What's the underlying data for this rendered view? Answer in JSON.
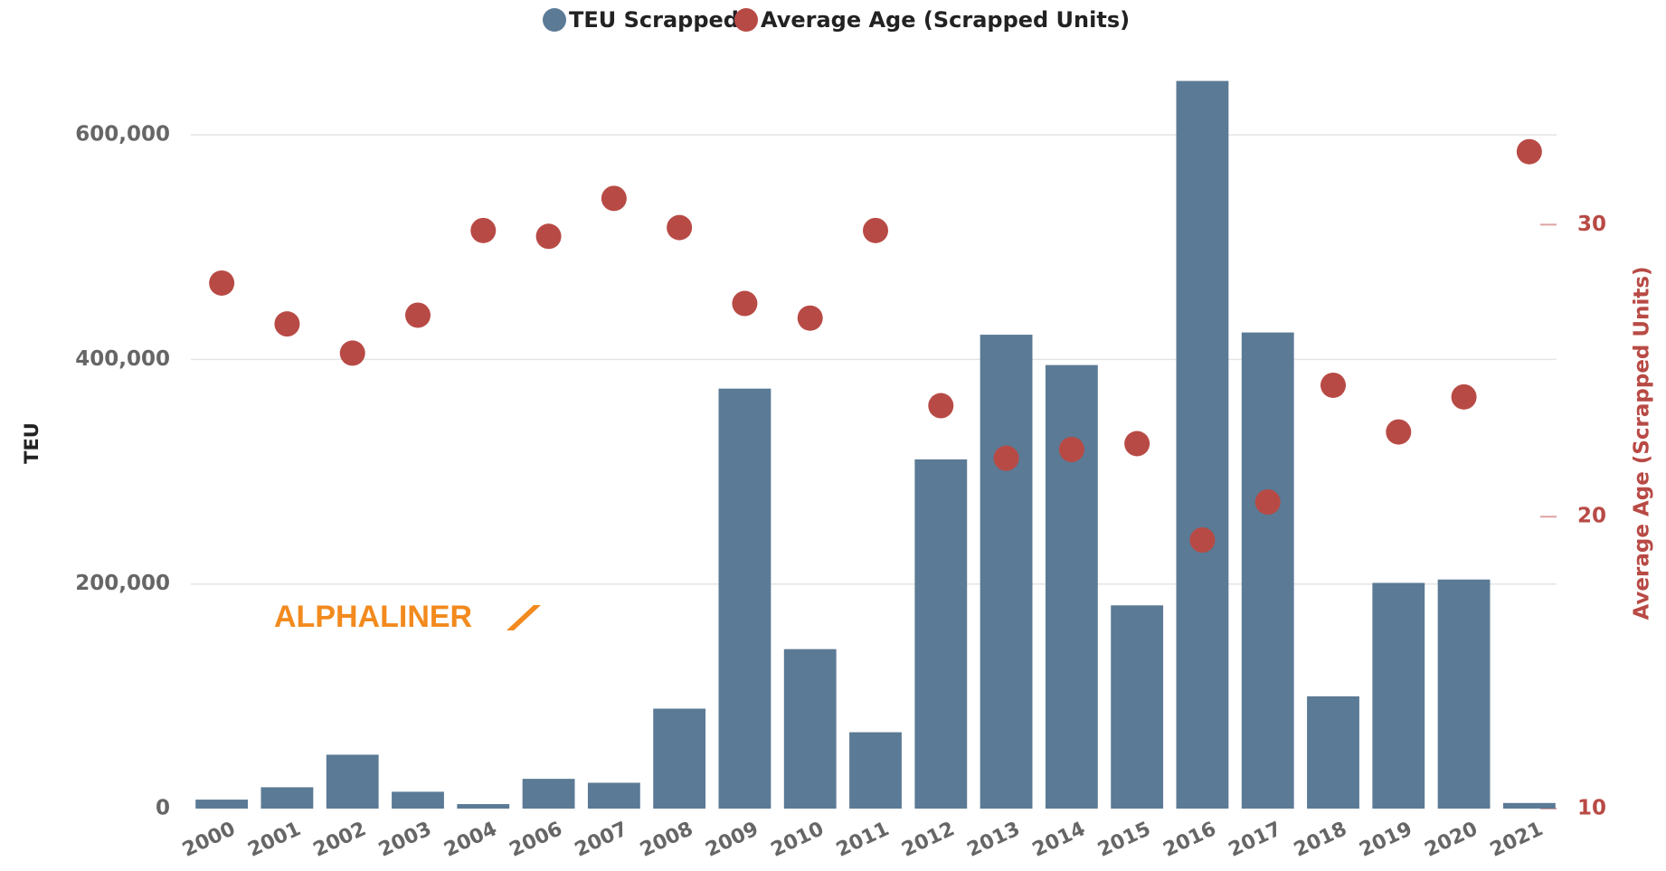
{
  "chart_data": {
    "type": "bar",
    "categories": [
      "2000",
      "2001",
      "2002",
      "2003",
      "2004",
      "2006",
      "2007",
      "2008",
      "2009",
      "2010",
      "2011",
      "2012",
      "2013",
      "2014",
      "2015",
      "2016",
      "2017",
      "2018",
      "2019",
      "2020",
      "2021"
    ],
    "series": [
      {
        "name": "TEU Scrapped",
        "type": "bar",
        "axis": "y",
        "color": "#5b7a95",
        "values": [
          8000,
          19000,
          48000,
          15000,
          4000,
          26500,
          23000,
          89000,
          374000,
          142000,
          68000,
          311000,
          422000,
          395000,
          181000,
          648000,
          424000,
          100000,
          201000,
          204000,
          5000
        ]
      },
      {
        "name": "Average Age (Scrapped Units)",
        "type": "scatter",
        "axis": "y2",
        "color": "#b84a45",
        "values": [
          28.0,
          26.6,
          25.6,
          26.9,
          29.8,
          29.6,
          30.9,
          29.9,
          27.3,
          26.8,
          29.8,
          23.8,
          22.0,
          22.3,
          22.5,
          19.2,
          20.5,
          24.5,
          22.9,
          24.1,
          32.5
        ]
      }
    ],
    "ylabel": "TEU",
    "y2label": "Average Age (Scrapped Units)",
    "ylim": [
      0,
      650000
    ],
    "yticks": [
      {
        "value": 0,
        "label": "0"
      },
      {
        "value": 200000,
        "label": "200,000"
      },
      {
        "value": 400000,
        "label": "400,000"
      },
      {
        "value": 600000,
        "label": "600,000"
      }
    ],
    "y2lim": [
      10,
      35
    ],
    "y2ticks": [
      10,
      20,
      30
    ],
    "grid": true,
    "legend": "top",
    "watermark": "ALPHALINER"
  }
}
